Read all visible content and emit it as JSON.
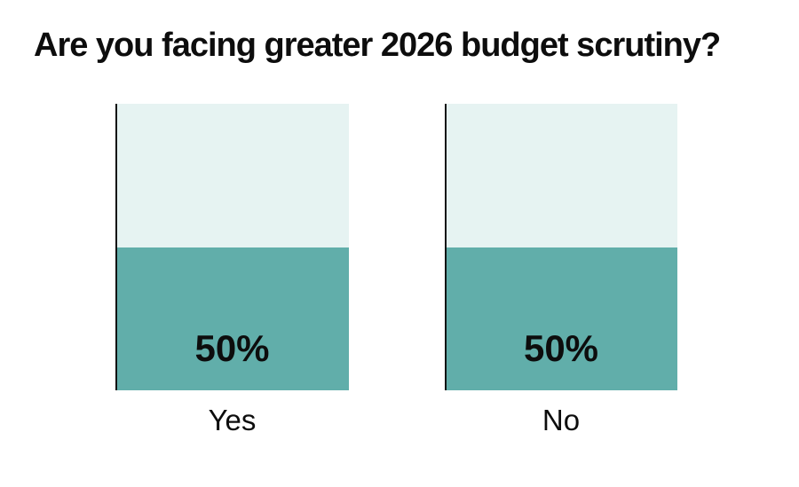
{
  "chart_data": {
    "type": "bar",
    "title": "Are you facing greater 2026 budget scrutiny?",
    "categories": [
      "Yes",
      "No"
    ],
    "values": [
      50,
      50
    ],
    "value_labels": [
      "50%",
      "50%"
    ],
    "xlabel": "",
    "ylabel": "",
    "ylim": [
      0,
      100
    ],
    "grid": false,
    "legend": false,
    "orientation": "vertical",
    "colors": {
      "bar_fill": "#61aeaa",
      "bar_track": "#e6f3f2",
      "axis_line": "#111111",
      "label_text": "#0d0d0d",
      "page_background": "#ffffff"
    }
  }
}
